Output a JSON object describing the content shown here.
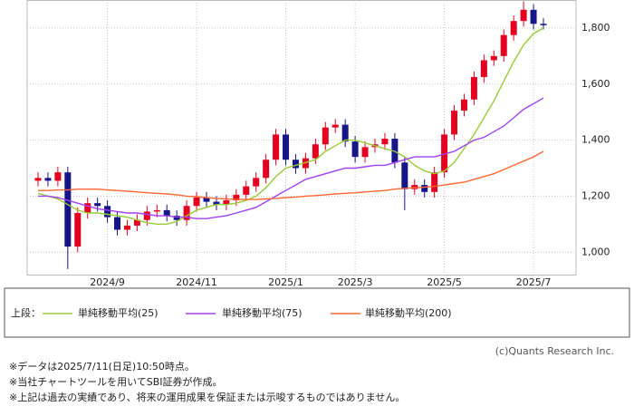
{
  "chart_data": {
    "type": "candlestick",
    "categories": [
      null,
      null,
      null,
      null,
      null,
      null,
      null,
      "2024/9",
      null,
      null,
      null,
      null,
      null,
      null,
      null,
      null,
      "2024/11",
      null,
      null,
      null,
      null,
      null,
      null,
      null,
      null,
      "2025/1",
      null,
      null,
      null,
      null,
      null,
      null,
      "2025/3",
      null,
      null,
      null,
      null,
      null,
      null,
      null,
      null,
      "2025/5",
      null,
      null,
      null,
      null,
      null,
      null,
      null,
      null,
      "2025/7",
      null
    ],
    "ohlc": {
      "open": [
        1255,
        1265,
        1255,
        1285,
        1020,
        1140,
        1175,
        1165,
        1125,
        1080,
        1095,
        1115,
        1145,
        1150,
        1130,
        1115,
        1165,
        1195,
        1180,
        1170,
        1185,
        1205,
        1235,
        1265,
        1330,
        1420,
        1330,
        1300,
        1335,
        1385,
        1445,
        1455,
        1395,
        1340,
        1375,
        1385,
        1405,
        1320,
        1225,
        1240,
        1215,
        1285,
        1420,
        1505,
        1545,
        1625,
        1685,
        1700,
        1775,
        1825,
        1865,
        1815
      ],
      "high": [
        1285,
        1285,
        1305,
        1305,
        1160,
        1195,
        1195,
        1185,
        1145,
        1115,
        1135,
        1165,
        1170,
        1170,
        1150,
        1185,
        1215,
        1215,
        1200,
        1205,
        1225,
        1255,
        1285,
        1350,
        1440,
        1440,
        1350,
        1355,
        1405,
        1465,
        1475,
        1475,
        1415,
        1395,
        1405,
        1425,
        1425,
        1340,
        1260,
        1260,
        1305,
        1440,
        1525,
        1565,
        1645,
        1705,
        1720,
        1795,
        1845,
        1895,
        1885,
        1835
      ],
      "low": [
        1235,
        1235,
        1235,
        940,
        1000,
        1120,
        1145,
        1105,
        1060,
        1060,
        1075,
        1095,
        1125,
        1110,
        1095,
        1095,
        1145,
        1160,
        1150,
        1150,
        1165,
        1185,
        1215,
        1245,
        1310,
        1310,
        1280,
        1280,
        1315,
        1365,
        1425,
        1375,
        1320,
        1320,
        1355,
        1365,
        1300,
        1150,
        1205,
        1195,
        1195,
        1265,
        1400,
        1485,
        1525,
        1605,
        1665,
        1680,
        1755,
        1805,
        1795,
        1795
      ],
      "close": [
        1265,
        1255,
        1285,
        1020,
        1140,
        1175,
        1165,
        1125,
        1080,
        1095,
        1115,
        1145,
        1150,
        1130,
        1115,
        1165,
        1195,
        1180,
        1170,
        1185,
        1205,
        1235,
        1265,
        1330,
        1420,
        1330,
        1300,
        1335,
        1385,
        1445,
        1455,
        1395,
        1340,
        1375,
        1385,
        1405,
        1320,
        1225,
        1240,
        1215,
        1285,
        1420,
        1505,
        1545,
        1625,
        1685,
        1700,
        1775,
        1825,
        1865,
        1815,
        1810
      ]
    },
    "up_color": "#e60020",
    "down_color": "#16168a",
    "series": [
      {
        "name": "単純移動平均(25)",
        "color": "#99cc33",
        "values": [
          1210,
          1200,
          1190,
          1170,
          1150,
          1140,
          1140,
          1135,
          1130,
          1125,
          1115,
          1105,
          1100,
          1100,
          1110,
          1130,
          1150,
          1160,
          1170,
          1170,
          1175,
          1185,
          1200,
          1230,
          1270,
          1300,
          1310,
          1320,
          1330,
          1360,
          1380,
          1400,
          1400,
          1390,
          1380,
          1370,
          1360,
          1340,
          1310,
          1290,
          1280,
          1290,
          1320,
          1370,
          1420,
          1480,
          1540,
          1610,
          1680,
          1740,
          1780,
          1800
        ]
      },
      {
        "name": "単純移動平均(75)",
        "color": "#a040f0",
        "values": [
          1200,
          1200,
          1195,
          1185,
          1175,
          1165,
          1155,
          1150,
          1145,
          1140,
          1140,
          1135,
          1130,
          1130,
          1125,
          1125,
          1120,
          1120,
          1125,
          1130,
          1140,
          1150,
          1160,
          1180,
          1200,
          1220,
          1240,
          1260,
          1270,
          1280,
          1290,
          1300,
          1300,
          1305,
          1310,
          1310,
          1320,
          1330,
          1340,
          1340,
          1340,
          1350,
          1360,
          1380,
          1400,
          1410,
          1430,
          1450,
          1480,
          1510,
          1530,
          1550
        ]
      },
      {
        "name": "単純移動平均(200)",
        "color": "#ff6633",
        "values": [
          1220,
          1220,
          1222,
          1222,
          1225,
          1225,
          1225,
          1222,
          1220,
          1218,
          1215,
          1212,
          1210,
          1208,
          1205,
          1200,
          1198,
          1195,
          1192,
          1190,
          1188,
          1188,
          1188,
          1190,
          1192,
          1195,
          1197,
          1200,
          1202,
          1205,
          1208,
          1210,
          1212,
          1215,
          1218,
          1220,
          1225,
          1228,
          1230,
          1232,
          1235,
          1240,
          1245,
          1250,
          1260,
          1270,
          1280,
          1295,
          1310,
          1325,
          1340,
          1360
        ]
      }
    ],
    "ylim": [
      920,
      1900
    ],
    "yticks": [
      {
        "value": 1000,
        "label": "1,000"
      },
      {
        "value": 1200,
        "label": "1,200"
      },
      {
        "value": 1400,
        "label": "1,400"
      },
      {
        "value": 1600,
        "label": "1,600"
      },
      {
        "value": 1800,
        "label": "1,800"
      }
    ],
    "grid": true,
    "legend_title": "上段：",
    "copyright": "(c)Quants Research Inc.",
    "notes": [
      "※データは2025/7/11(日足)10:50時点。",
      "※当社チャートツールを用いてSBI証券が作成。",
      "※上記は過去の実績であり、将来の運用成果を保証または示唆するものではありません。"
    ]
  }
}
